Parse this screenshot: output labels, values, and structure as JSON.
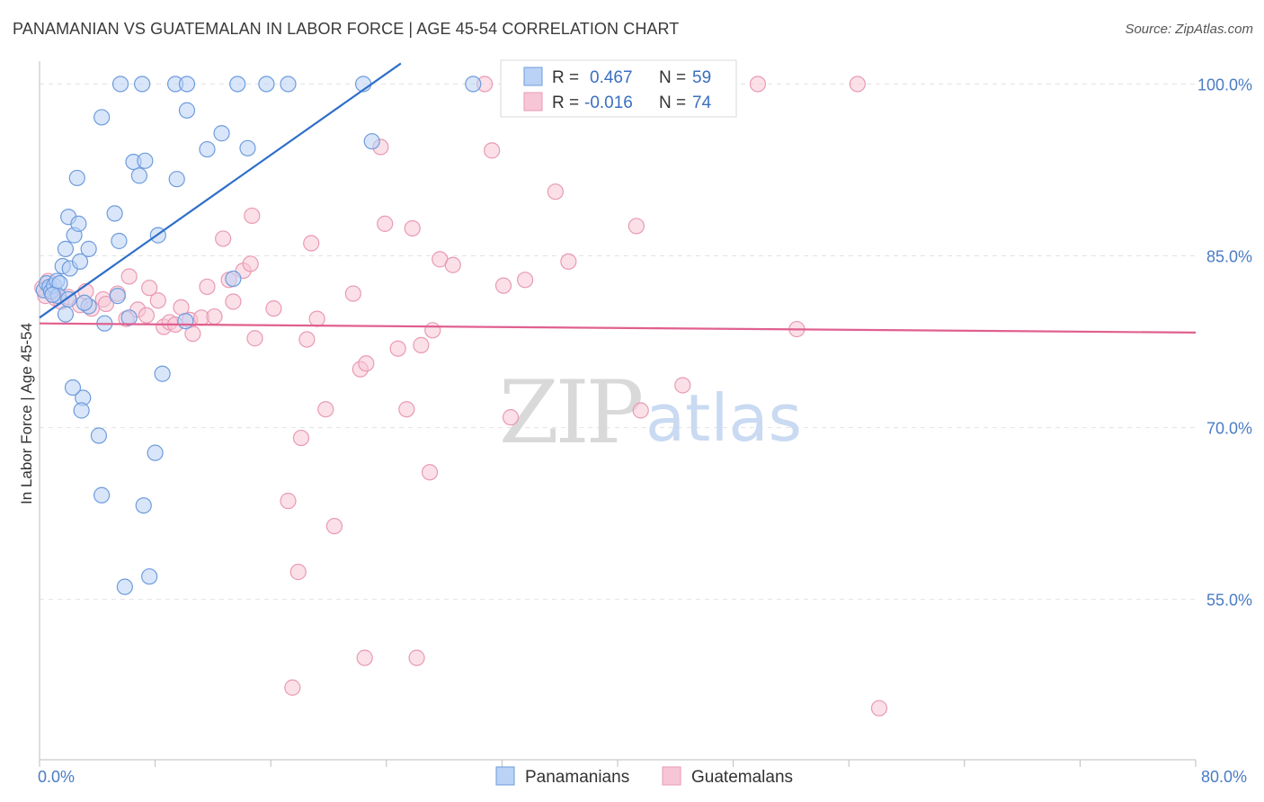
{
  "title": "PANAMANIAN VS GUATEMALAN IN LABOR FORCE | AGE 45-54 CORRELATION CHART",
  "source": "Source: ZipAtlas.com",
  "watermark": {
    "zip": "ZIP",
    "atlas": "atlas"
  },
  "colors": {
    "blue_fill": "#b9d2f5",
    "blue_stroke": "#6e9cdc",
    "blue_line": "#2e6fc9",
    "pink_fill": "#f7c6d6",
    "pink_stroke": "#e99ab4",
    "pink_line": "#e0608f",
    "grid": "#e2e2e2",
    "axis_text": "#4a7cc4"
  },
  "chart_data": {
    "type": "scatter",
    "xlabel": "",
    "ylabel": "In Labor Force | Age 45-54",
    "xlim": [
      0,
      80
    ],
    "ylim": [
      41,
      102
    ],
    "x_tick_labels": [
      "0.0%",
      "80.0%"
    ],
    "y_ticks": [
      55,
      70,
      85,
      100
    ],
    "y_tick_labels": [
      "55.0%",
      "70.0%",
      "85.0%",
      "100.0%"
    ],
    "legend": [
      {
        "r_label": "R =",
        "r_value": "0.467",
        "n_label": "N =",
        "n_value": "59"
      },
      {
        "r_label": "R =",
        "r_value": "-0.016",
        "n_label": "N =",
        "n_value": "74"
      }
    ],
    "series": [
      {
        "name": "Panamanians",
        "trend": {
          "x0": 0,
          "y0": 79.6,
          "x1": 25,
          "y1": 101.8
        },
        "points": [
          [
            0.3,
            82
          ],
          [
            0.5,
            82.6
          ],
          [
            0.7,
            82.3
          ],
          [
            0.8,
            81.9
          ],
          [
            1.0,
            82.4
          ],
          [
            1.2,
            82.8
          ],
          [
            1.4,
            82.6
          ],
          [
            1.3,
            81.5
          ],
          [
            1.6,
            84.1
          ],
          [
            1.8,
            85.6
          ],
          [
            2.1,
            83.9
          ],
          [
            2.0,
            88.4
          ],
          [
            2.4,
            86.8
          ],
          [
            2.7,
            87.8
          ],
          [
            2.8,
            84.5
          ],
          [
            2.6,
            91.8
          ],
          [
            3.4,
            80.6
          ],
          [
            3.4,
            85.6
          ],
          [
            3.0,
            72.6
          ],
          [
            2.9,
            71.5
          ],
          [
            2.3,
            73.5
          ],
          [
            4.3,
            97.1
          ],
          [
            4.1,
            69.3
          ],
          [
            4.3,
            64.1
          ],
          [
            5.5,
            86.3
          ],
          [
            5.2,
            88.7
          ],
          [
            5.4,
            81.5
          ],
          [
            4.5,
            79.1
          ],
          [
            5.6,
            100
          ],
          [
            6.2,
            79.6
          ],
          [
            6.5,
            93.2
          ],
          [
            6.9,
            92
          ],
          [
            7.3,
            93.3
          ],
          [
            7.1,
            100
          ],
          [
            7.6,
            57
          ],
          [
            7.2,
            63.2
          ],
          [
            8.0,
            67.8
          ],
          [
            8.2,
            86.8
          ],
          [
            8.5,
            74.7
          ],
          [
            9.5,
            91.7
          ],
          [
            9.4,
            100
          ],
          [
            10.2,
            97.7
          ],
          [
            10.2,
            100
          ],
          [
            10.1,
            79.3
          ],
          [
            11.6,
            94.3
          ],
          [
            12.6,
            95.7
          ],
          [
            13.7,
            100
          ],
          [
            13.4,
            83
          ],
          [
            14.4,
            94.4
          ],
          [
            15.7,
            100
          ],
          [
            17.2,
            100
          ],
          [
            22.4,
            100
          ],
          [
            23.0,
            95
          ],
          [
            30.0,
            100
          ],
          [
            5.9,
            56.1
          ],
          [
            1.8,
            79.9
          ],
          [
            3.1,
            80.9
          ],
          [
            0.9,
            81.6
          ],
          [
            2.0,
            81.2
          ]
        ]
      },
      {
        "name": "Guatemalans",
        "trend": {
          "x0": 0,
          "y0": 79.1,
          "x1": 80,
          "y1": 78.3
        },
        "points": [
          [
            0.2,
            82.2
          ],
          [
            0.4,
            81.5
          ],
          [
            0.6,
            82.8
          ],
          [
            0.9,
            81.9
          ],
          [
            1.1,
            81.3
          ],
          [
            1.5,
            81
          ],
          [
            2.0,
            81.4
          ],
          [
            2.8,
            80.7
          ],
          [
            3.2,
            81.9
          ],
          [
            3.6,
            80.4
          ],
          [
            4.4,
            81.2
          ],
          [
            4.6,
            80.8
          ],
          [
            5.4,
            81.7
          ],
          [
            6.2,
            83.2
          ],
          [
            6.8,
            80.3
          ],
          [
            7.4,
            79.8
          ],
          [
            7.6,
            82.2
          ],
          [
            8.2,
            81.1
          ],
          [
            8.6,
            78.8
          ],
          [
            9.0,
            79.2
          ],
          [
            9.4,
            79
          ],
          [
            9.8,
            80.5
          ],
          [
            10.4,
            79.4
          ],
          [
            10.6,
            78.2
          ],
          [
            11.2,
            79.6
          ],
          [
            11.6,
            82.3
          ],
          [
            12.1,
            79.7
          ],
          [
            12.7,
            86.5
          ],
          [
            13.1,
            82.9
          ],
          [
            13.4,
            81
          ],
          [
            14.1,
            83.7
          ],
          [
            14.6,
            84.3
          ],
          [
            14.7,
            88.5
          ],
          [
            14.9,
            77.8
          ],
          [
            16.2,
            80.4
          ],
          [
            17.2,
            63.6
          ],
          [
            17.5,
            47.3
          ],
          [
            17.9,
            57.4
          ],
          [
            18.1,
            69.1
          ],
          [
            18.5,
            77.7
          ],
          [
            18.8,
            86.1
          ],
          [
            19.2,
            79.5
          ],
          [
            19.8,
            71.6
          ],
          [
            20.4,
            61.4
          ],
          [
            21.7,
            81.7
          ],
          [
            22.2,
            75.1
          ],
          [
            22.6,
            75.6
          ],
          [
            22.5,
            49.9
          ],
          [
            23.6,
            94.5
          ],
          [
            23.9,
            87.8
          ],
          [
            24.8,
            76.9
          ],
          [
            25.4,
            71.6
          ],
          [
            25.8,
            87.4
          ],
          [
            26.1,
            49.9
          ],
          [
            26.4,
            77.2
          ],
          [
            27.0,
            66.1
          ],
          [
            27.2,
            78.5
          ],
          [
            27.7,
            84.7
          ],
          [
            28.6,
            84.2
          ],
          [
            30.8,
            100
          ],
          [
            31.3,
            94.2
          ],
          [
            32.1,
            82.4
          ],
          [
            32.6,
            70.9
          ],
          [
            33.6,
            82.9
          ],
          [
            35.7,
            90.6
          ],
          [
            36.6,
            84.5
          ],
          [
            41.3,
            87.6
          ],
          [
            41.6,
            71.5
          ],
          [
            44.5,
            73.7
          ],
          [
            49.7,
            100
          ],
          [
            52.4,
            78.6
          ],
          [
            56.6,
            100
          ],
          [
            58.1,
            45.5
          ],
          [
            6.0,
            79.5
          ]
        ]
      }
    ]
  },
  "legend_bottom": {
    "series1": "Panamanians",
    "series2": "Guatemalans"
  }
}
